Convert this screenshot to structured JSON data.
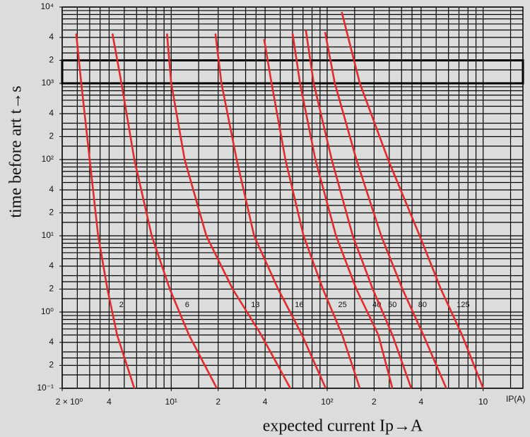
{
  "chart_data": {
    "type": "line",
    "log_x": true,
    "log_y": true,
    "y_label": "time before art t→s",
    "x_label": "expected current Ip→A",
    "x_unit": "IP(A)",
    "xlim": [
      2,
      1800
    ],
    "ylim": [
      0.1,
      10000
    ],
    "xticks": [
      {
        "value": 2,
        "label": "2 × 10⁰"
      },
      4,
      {
        "value": 10,
        "label": "10¹"
      },
      {
        "value": 20,
        "label": "2"
      },
      {
        "value": 40,
        "label": "4"
      },
      {
        "value": 100,
        "label": "10²"
      },
      {
        "value": 200,
        "label": "2"
      },
      {
        "value": 400,
        "label": "4"
      },
      {
        "value": 1000,
        "label": "10"
      }
    ],
    "yticks": [
      {
        "value": 0.1,
        "label": "10⁻¹"
      },
      {
        "value": 0.2,
        "label": "2"
      },
      {
        "value": 0.4,
        "label": "4"
      },
      {
        "value": 1,
        "label": "10⁰"
      },
      2,
      4,
      {
        "value": 10,
        "label": "10¹"
      },
      {
        "value": 20,
        "label": "2"
      },
      {
        "value": 40,
        "label": "4"
      },
      {
        "value": 100,
        "label": "10²"
      },
      {
        "value": 200,
        "label": "2"
      },
      {
        "value": 400,
        "label": "4"
      },
      {
        "value": 1000,
        "label": "10³"
      },
      {
        "value": 2000,
        "label": "2"
      },
      {
        "value": 4000,
        "label": "4"
      },
      {
        "value": 10000,
        "label": "10⁴"
      }
    ],
    "xgrid": [
      2,
      2.5,
      3,
      3.5,
      4,
      5,
      6,
      7,
      8,
      9,
      10,
      15,
      20,
      25,
      30,
      35,
      40,
      50,
      60,
      70,
      80,
      90,
      100,
      150,
      200,
      250,
      300,
      350,
      400,
      500,
      600,
      700,
      800,
      900,
      1000,
      1500
    ],
    "ygrid": [
      0.1,
      0.15,
      0.2,
      0.25,
      0.3,
      0.4,
      0.5,
      0.6,
      0.7,
      0.8,
      0.9,
      1,
      1.5,
      2,
      2.5,
      3,
      4,
      5,
      6,
      7,
      8,
      9,
      10,
      15,
      20,
      25,
      30,
      40,
      50,
      60,
      70,
      80,
      90,
      100,
      150,
      200,
      250,
      300,
      400,
      500,
      600,
      700,
      800,
      900,
      1000,
      1500,
      2000,
      2500,
      3000,
      4000,
      5000,
      6000,
      7000,
      8000,
      9000,
      10000
    ],
    "grid": true,
    "highlight_band": [
      1000,
      2000
    ],
    "series": [
      {
        "name": "2",
        "color": "#e32b2b",
        "x": [
          2.46,
          2.65,
          3.0,
          3.4,
          3.9,
          4.5,
          5.8
        ],
        "values": [
          4500,
          1000,
          100,
          10,
          2,
          0.5,
          0.1
        ]
      },
      {
        "name": "6",
        "color": "#e32b2b",
        "x": [
          4.2,
          4.8,
          5.8,
          7.5,
          9.8,
          13,
          19.6
        ],
        "values": [
          4500,
          1000,
          100,
          10,
          2,
          0.5,
          0.1
        ]
      },
      {
        "name": "13",
        "color": "#e32b2b",
        "x": [
          9.4,
          10,
          12.2,
          16.8,
          24.8,
          37.8,
          58
        ],
        "values": [
          4500,
          1000,
          100,
          10,
          2,
          0.5,
          0.1
        ]
      },
      {
        "name": "16",
        "color": "#e32b2b",
        "x": [
          19.2,
          21,
          26.3,
          34,
          48.5,
          69,
          98
        ],
        "values": [
          4500,
          1000,
          100,
          10,
          2,
          0.5,
          0.1
        ]
      },
      {
        "name": "25",
        "color": "#e32b2b",
        "x": [
          39.4,
          44,
          54,
          70.6,
          94,
          125,
          162
        ],
        "values": [
          3800,
          1000,
          100,
          10,
          2,
          0.5,
          0.1
        ]
      },
      {
        "name": "40",
        "color": "#e32b2b",
        "x": [
          60,
          67,
          84,
          114,
          154,
          213,
          262
        ],
        "values": [
          4500,
          1000,
          100,
          10,
          2,
          0.5,
          0.1
        ]
      },
      {
        "name": "50",
        "color": "#e32b2b",
        "x": [
          73,
          82,
          107,
          146,
          196,
          262,
          346
        ],
        "values": [
          5000,
          1000,
          100,
          10,
          2,
          0.5,
          0.1
        ]
      },
      {
        "name": "80",
        "color": "#e32b2b",
        "x": [
          97,
          112,
          154,
          222,
          304,
          414,
          580
        ],
        "values": [
          4700,
          1000,
          100,
          10,
          2,
          0.5,
          0.1
        ]
      },
      {
        "name": "125",
        "color": "#e32b2b",
        "x": [
          124,
          162,
          246,
          392,
          536,
          732,
          1000
        ],
        "values": [
          8600,
          1000,
          100,
          10,
          2,
          0.5,
          0.1
        ]
      }
    ]
  }
}
